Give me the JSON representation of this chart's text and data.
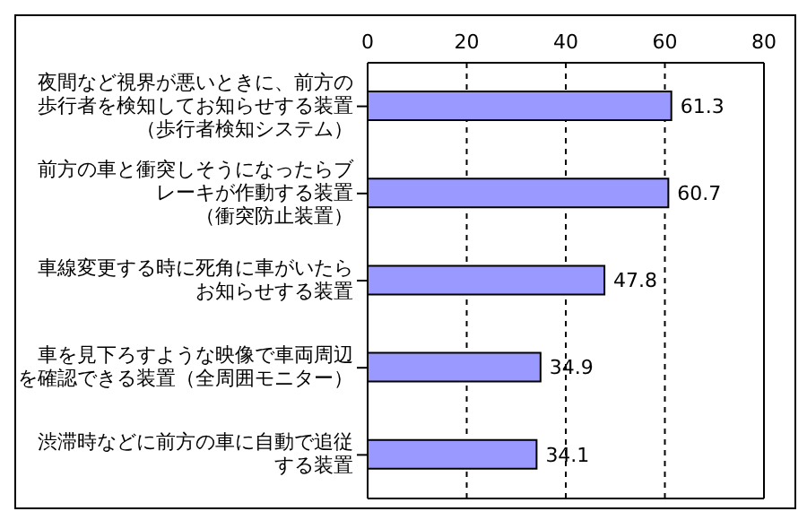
{
  "chart_data": {
    "type": "bar",
    "orientation": "horizontal",
    "categories": [
      "夜間など視界が悪いときに、前方の歩行者を検知してお知らせする装置（歩行者検知システム）",
      "前方の車と衝突しそうになったらブレーキが作動する装置（衝突防止装置）",
      "車線変更する時に死角に車がいたらお知らせする装置",
      "車を見下ろすような映像で車両周辺を確認できる装置（全周囲モニター）",
      "渋滞時などに前方の車に自動で追従する装置"
    ],
    "values": [
      61.3,
      60.7,
      47.8,
      34.9,
      34.1
    ],
    "color": "#9999ff",
    "xlim": [
      0,
      80
    ],
    "xticks": [
      0,
      20,
      40,
      60,
      80
    ],
    "grid": "x",
    "data_labels": true
  }
}
